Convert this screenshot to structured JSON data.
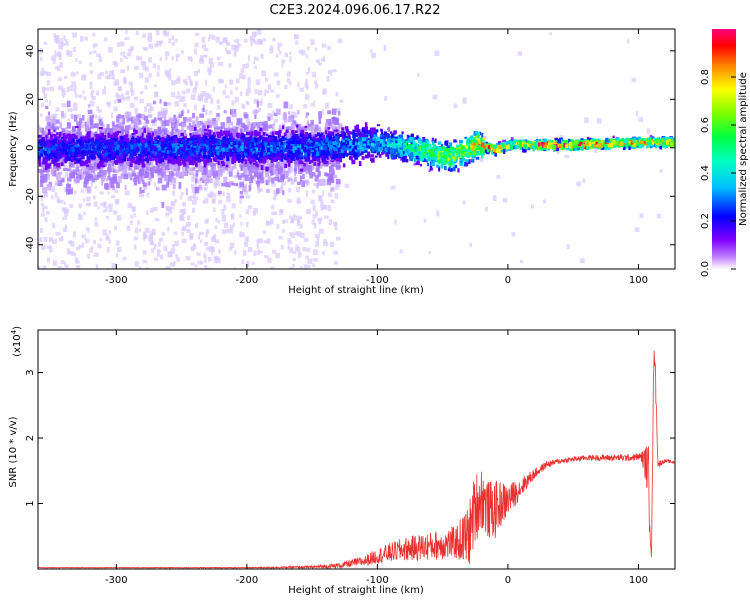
{
  "chart_data": [
    {
      "type": "heatmap",
      "title": "C2E3.2024.096.06.17.R22",
      "xlabel": "Height of straight line (km)",
      "ylabel": "Frequency (Hz)",
      "xlim": [
        -360,
        128
      ],
      "ylim": [
        -50,
        49
      ],
      "x_ticks": [
        -300,
        -200,
        -100,
        0,
        100
      ],
      "x_tick_labels": [
        "-300",
        "-200",
        "-100",
        "0",
        "100"
      ],
      "y_ticks": [
        -40,
        -20,
        0,
        20,
        40
      ],
      "y_tick_labels": [
        "-40",
        "-20",
        "0",
        "20",
        "40"
      ],
      "colorbar": {
        "label": "Normalized spectral amplitude",
        "range": [
          0,
          1
        ],
        "ticks": [
          0,
          0.2,
          0.4,
          0.6,
          0.8
        ],
        "tick_labels": [
          "0.0",
          "0.2",
          "0.4",
          "0.6",
          "0.8"
        ],
        "colormap": [
          "#ffffff",
          "#8000ff",
          "#0000ff",
          "#00c0ff",
          "#00ff80",
          "#40ff00",
          "#ffff00",
          "#ff8000",
          "#ff0000",
          "#ff0080"
        ]
      },
      "description_points": {
        "center_frequency_hz": [
          {
            "x": -360,
            "f": 0
          },
          {
            "x": -150,
            "f": 1
          },
          {
            "x": -100,
            "f": 3
          },
          {
            "x": -70,
            "f": 0
          },
          {
            "x": -45,
            "f": -3
          },
          {
            "x": -25,
            "f": 2
          },
          {
            "x": -10,
            "f": 0
          },
          {
            "x": 0,
            "f": 2
          },
          {
            "x": 50,
            "f": 2
          },
          {
            "x": 100,
            "f": 3
          },
          {
            "x": 128,
            "f": 3
          }
        ],
        "peak_amplitude": [
          {
            "x": -360,
            "a": 0.25
          },
          {
            "x": -130,
            "a": 0.3
          },
          {
            "x": -100,
            "a": 0.35
          },
          {
            "x": -60,
            "a": 0.6
          },
          {
            "x": -30,
            "a": 0.7
          },
          {
            "x": -10,
            "a": 0.9
          },
          {
            "x": 0,
            "a": 0.6
          },
          {
            "x": 30,
            "a": 0.95
          },
          {
            "x": 90,
            "a": 0.8
          },
          {
            "x": 128,
            "a": 0.7
          }
        ]
      }
    },
    {
      "type": "line",
      "xlabel": "Height of straight line (km)",
      "ylabel": "SNR (10 * v/v)",
      "y_multiplier_label": "(x10",
      "y_multiplier_exponent": "4",
      "xlim": [
        -360,
        128
      ],
      "ylim": [
        0,
        3.65
      ],
      "x_ticks": [
        -300,
        -200,
        -100,
        0,
        100
      ],
      "x_tick_labels": [
        "-300",
        "-200",
        "-100",
        "0",
        "100"
      ],
      "y_ticks": [
        1,
        2,
        3
      ],
      "y_tick_labels": [
        "1",
        "2",
        "3"
      ],
      "series": [
        {
          "color": "#e8312f",
          "x": [
            -360,
            -300,
            -200,
            -150,
            -130,
            -110,
            -100,
            -80,
            -60,
            -40,
            -30,
            -25,
            -20,
            -15,
            -10,
            -5,
            0,
            5,
            10,
            20,
            30,
            40,
            60,
            80,
            95,
            102,
            106,
            108,
            110,
            112,
            115,
            120,
            128
          ],
          "y": [
            0.02,
            0.02,
            0.02,
            0.03,
            0.05,
            0.12,
            0.2,
            0.3,
            0.35,
            0.4,
            0.5,
            0.95,
            1.1,
            0.9,
            0.9,
            1.0,
            1.05,
            1.15,
            1.25,
            1.45,
            1.6,
            1.65,
            1.7,
            1.7,
            1.7,
            1.72,
            1.6,
            1.3,
            0.2,
            3.6,
            1.6,
            1.65,
            1.63
          ],
          "noise": [
            0.004,
            0.004,
            0.006,
            0.02,
            0.04,
            0.08,
            0.12,
            0.18,
            0.22,
            0.25,
            0.5,
            0.55,
            0.5,
            0.45,
            0.45,
            0.35,
            0.25,
            0.2,
            0.15,
            0.08,
            0.05,
            0.04,
            0.04,
            0.05,
            0.05,
            0.06,
            0.3,
            0.6,
            0.1,
            0.3,
            0.05,
            0.03,
            0.02
          ]
        }
      ]
    }
  ]
}
